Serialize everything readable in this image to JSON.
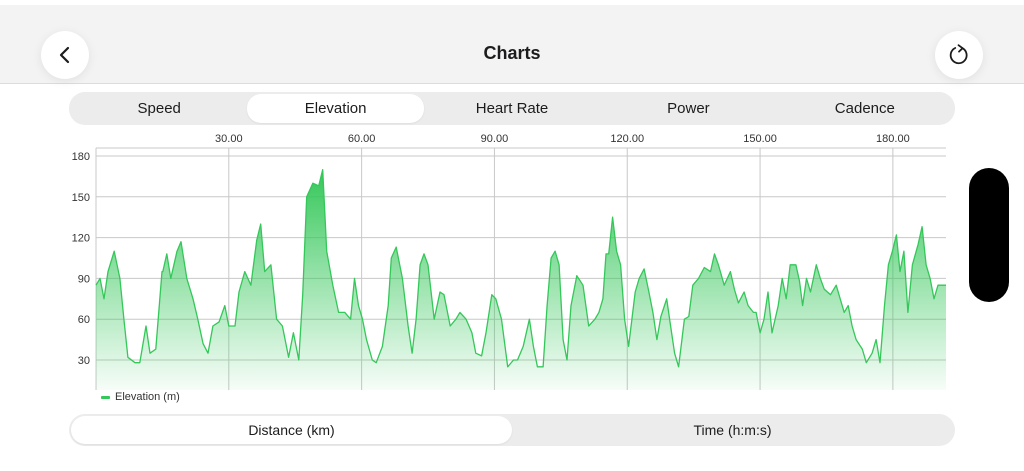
{
  "header": {
    "title": "Charts",
    "back_icon": "chevron-left-icon",
    "refresh_icon": "refresh-icon"
  },
  "metric_tabs": [
    {
      "label": "Speed",
      "active": false
    },
    {
      "label": "Elevation",
      "active": true
    },
    {
      "label": "Heart Rate",
      "active": false
    },
    {
      "label": "Power",
      "active": false
    },
    {
      "label": "Cadence",
      "active": false
    }
  ],
  "axis_tabs": [
    {
      "label": "Distance (km)",
      "active": true
    },
    {
      "label": "Time (h:m:s)",
      "active": false
    }
  ],
  "colors": {
    "series": "#34c759",
    "grid": "#c8c8c8",
    "topbar": "#f3f3f3",
    "segment_bg": "#ececec"
  },
  "chart_data": {
    "type": "area",
    "title": "",
    "xlabel": "Distance (km)",
    "ylabel": "Elevation (m)",
    "x_ticks": [
      "30.00",
      "60.00",
      "90.00",
      "120.00",
      "150.00",
      "180.00"
    ],
    "x_tick_values": [
      30,
      60,
      90,
      120,
      150,
      180
    ],
    "y_ticks": [
      "30",
      "60",
      "90",
      "120",
      "150",
      "180"
    ],
    "y_tick_values": [
      30,
      60,
      90,
      120,
      150,
      180
    ],
    "xlim": [
      0,
      192
    ],
    "ylim": [
      0,
      180
    ],
    "grid": true,
    "x_axis_position": "top",
    "legend": {
      "position": "bottom-left",
      "entries": [
        "Elevation (m)"
      ]
    },
    "series": [
      {
        "name": "Elevation (m)",
        "x": [
          0,
          0.9,
          1.8,
          2.7,
          4.1,
          5.4,
          6.3,
          7.2,
          8.8,
          9.9,
          11.3,
          12.2,
          13.5,
          14.9,
          15.1,
          16.0,
          16.9,
          18.3,
          19.2,
          20.5,
          21.9,
          23.0,
          24.2,
          25.3,
          26.4,
          27.8,
          29.1,
          30.0,
          31.4,
          32.3,
          33.6,
          35.0,
          36.3,
          37.2,
          38.1,
          39.5,
          40.8,
          42.1,
          43.5,
          44.6,
          45.8,
          46.7,
          47.6,
          49.0,
          50.3,
          51.2,
          52.1,
          53.5,
          54.8,
          56.2,
          57.5,
          58.4,
          59.3,
          60.2,
          61.1,
          62.4,
          63.3,
          64.7,
          66.0,
          66.7,
          67.8,
          69.2,
          70.5,
          71.4,
          72.3,
          73.2,
          74.1,
          75.0,
          76.4,
          77.7,
          78.6,
          80.0,
          81.3,
          82.2,
          83.6,
          84.9,
          85.8,
          87.1,
          88.1,
          89.4,
          90.3,
          91.6,
          93.0,
          94.3,
          95.2,
          96.5,
          97.9,
          98.8,
          99.7,
          101.0,
          101.9,
          102.8,
          103.7,
          104.6,
          105.5,
          106.4,
          107.3,
          108.6,
          110.0,
          111.3,
          112.7,
          113.6,
          114.5,
          115.2,
          115.8,
          116.7,
          117.6,
          118.5,
          119.4,
          120.3,
          121.8,
          122.7,
          123.8,
          124.9,
          125.8,
          126.7,
          127.6,
          128.9,
          129.8,
          130.7,
          131.6,
          132.9,
          133.9,
          134.8,
          136.1,
          137.4,
          138.8,
          139.7,
          140.6,
          141.9,
          143.3,
          144.2,
          145.1,
          146.4,
          147.3,
          148.5,
          149.1,
          150.0,
          150.9,
          151.8,
          152.7,
          154.1,
          155.0,
          155.9,
          156.8,
          158.1,
          158.9,
          159.6,
          160.5,
          161.4,
          162.7,
          163.6,
          164.5,
          165.9,
          167.2,
          168.1,
          169.0,
          169.9,
          170.8,
          171.7,
          173.1,
          174.0,
          175.3,
          176.2,
          177.1,
          178.1,
          179.0,
          179.9,
          180.8,
          181.6,
          182.5,
          183.4,
          184.4,
          185.7,
          186.6,
          187.5,
          188.4,
          189.3,
          190.2,
          191.1,
          192.0
        ],
        "values": [
          85,
          90,
          75,
          95,
          110,
          90,
          60,
          32,
          28,
          28,
          55,
          35,
          38,
          95,
          95,
          108,
          90,
          110,
          117,
          90,
          75,
          60,
          42,
          35,
          55,
          58,
          70,
          55,
          55,
          80,
          95,
          85,
          118,
          130,
          95,
          100,
          60,
          55,
          32,
          50,
          30,
          78,
          150,
          160,
          158,
          170,
          110,
          85,
          65,
          65,
          60,
          90,
          70,
          60,
          45,
          30,
          28,
          40,
          70,
          105,
          113,
          90,
          55,
          35,
          60,
          100,
          108,
          100,
          60,
          80,
          78,
          55,
          60,
          65,
          60,
          50,
          35,
          33,
          50,
          78,
          75,
          60,
          25,
          30,
          30,
          40,
          60,
          40,
          25,
          25,
          70,
          105,
          110,
          100,
          45,
          30,
          70,
          92,
          85,
          55,
          60,
          65,
          75,
          108,
          108,
          135,
          110,
          100,
          60,
          40,
          80,
          90,
          97,
          80,
          65,
          45,
          62,
          75,
          55,
          35,
          25,
          60,
          62,
          85,
          90,
          98,
          95,
          108,
          100,
          85,
          95,
          82,
          72,
          80,
          70,
          65,
          65,
          50,
          60,
          80,
          50,
          70,
          90,
          75,
          100,
          100,
          88,
          70,
          90,
          80,
          100,
          90,
          82,
          78,
          85,
          75,
          65,
          70,
          55,
          45,
          38,
          28,
          35,
          45,
          28,
          70,
          100,
          110,
          122,
          95,
          110,
          65,
          100,
          115,
          128,
          100,
          90,
          75,
          85,
          85,
          85
        ]
      }
    ]
  }
}
